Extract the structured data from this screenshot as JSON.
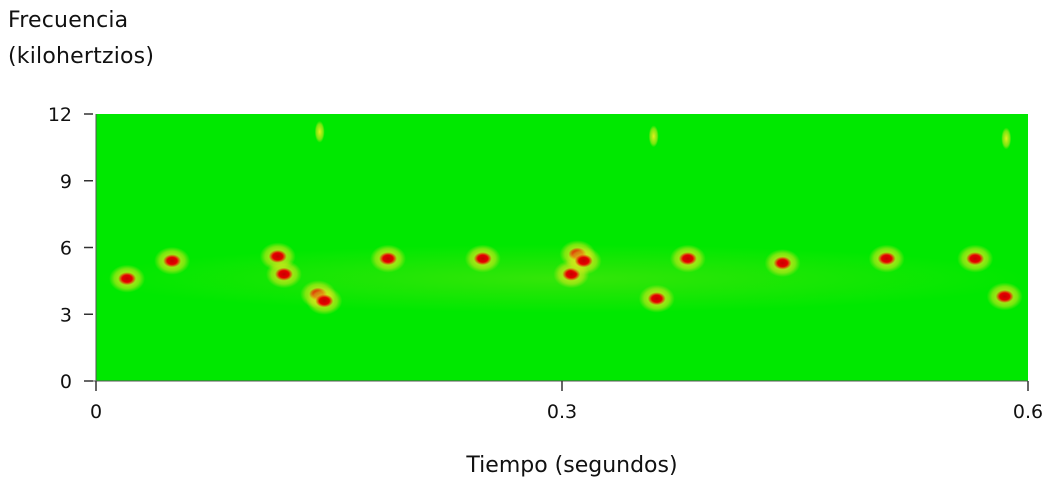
{
  "chart_data": {
    "type": "heatmap",
    "title": "",
    "ylabel_lines": [
      "Frecuencia",
      "(kilohertzios)"
    ],
    "xlabel": "Tiempo (segundos)",
    "xlim": [
      0,
      0.6
    ],
    "ylim": [
      0,
      12
    ],
    "x_ticks": [
      {
        "value": 0,
        "label": "0"
      },
      {
        "value": 0.3,
        "label": "0.3"
      },
      {
        "value": 0.6,
        "label": "0.6"
      }
    ],
    "y_ticks": [
      {
        "value": 0,
        "label": "0"
      },
      {
        "value": 3,
        "label": "3"
      },
      {
        "value": 6,
        "label": "6"
      },
      {
        "value": 9,
        "label": "9"
      },
      {
        "value": 12,
        "label": "12"
      }
    ],
    "grid": false,
    "colors": {
      "background": "#00e800",
      "medium": "#e6e61a",
      "high": "#e60000",
      "low": "#00b4ff"
    },
    "events": [
      {
        "t": 0.02,
        "f": 4.6
      },
      {
        "t": 0.049,
        "f": 5.4
      },
      {
        "t": 0.117,
        "f": 5.6
      },
      {
        "t": 0.121,
        "f": 4.8
      },
      {
        "t": 0.143,
        "f": 3.9
      },
      {
        "t": 0.147,
        "f": 3.6
      },
      {
        "t": 0.188,
        "f": 5.5
      },
      {
        "t": 0.249,
        "f": 5.5
      },
      {
        "t": 0.306,
        "f": 4.8
      },
      {
        "t": 0.31,
        "f": 5.7
      },
      {
        "t": 0.314,
        "f": 5.4
      },
      {
        "t": 0.361,
        "f": 3.7
      },
      {
        "t": 0.381,
        "f": 5.5
      },
      {
        "t": 0.442,
        "f": 5.3
      },
      {
        "t": 0.509,
        "f": 5.5
      },
      {
        "t": 0.566,
        "f": 5.5
      },
      {
        "t": 0.585,
        "f": 3.8
      }
    ],
    "faint_marks": [
      {
        "t": 0.144,
        "f": 11.2
      },
      {
        "t": 0.359,
        "f": 11.0
      },
      {
        "t": 0.586,
        "f": 10.9
      }
    ]
  }
}
